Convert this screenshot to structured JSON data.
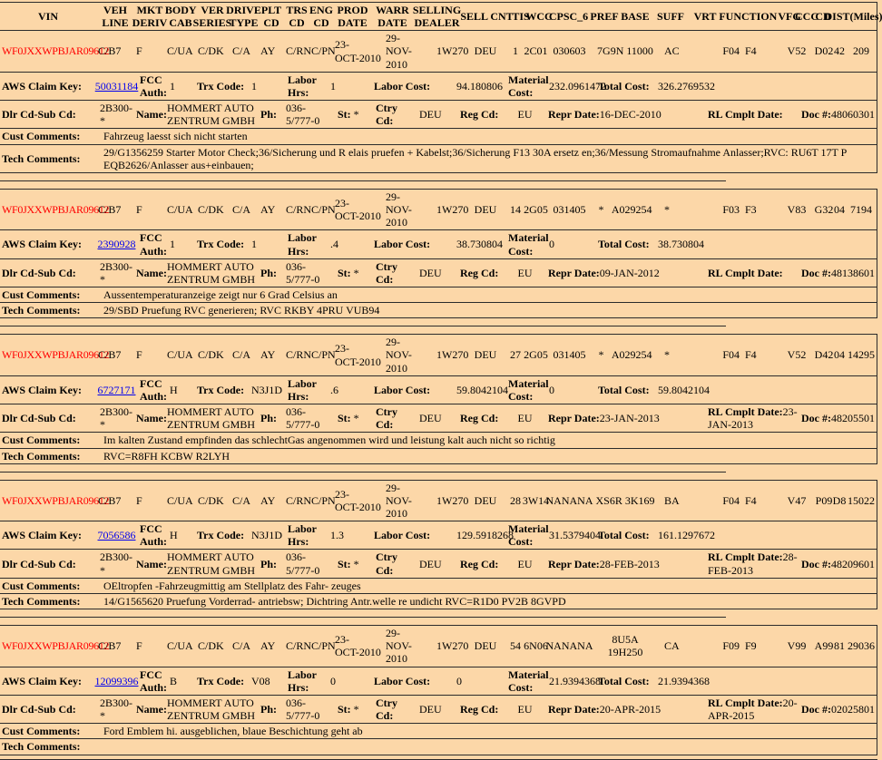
{
  "colors": {
    "background": "#fcd7a8",
    "vin_text": "#ff0000",
    "link": "#0000ee",
    "border": "#2b2b2b"
  },
  "headers": [
    "VIN",
    "VEH LINE",
    "MKT DERIV",
    "BODY CAB",
    "VER SERIES",
    "DRIVE TYPE",
    "PLT CD",
    "TRS CD",
    "ENG CD",
    "PROD DATE",
    "WARR DATE",
    "SELLING DEALER",
    "SELL CNT",
    "TIS",
    "WCC",
    "CPSC_6",
    "PREF BASE",
    "SUFF",
    "VRT FUNCTION",
    "VFG",
    "CCC",
    "CD",
    "DIST(Miles)"
  ],
  "labels": {
    "aws_claim_key": "AWS Claim Key:",
    "fcc_auth": "FCC Auth:",
    "trx_code": "Trx Code:",
    "labor_hrs": "Labor Hrs:",
    "labor_cost": "Labor Cost:",
    "material_cost": "Material Cost:",
    "total_cost": "Total Cost:",
    "dlr_cd_sub_cd": "Dlr Cd-Sub Cd:",
    "name": "Name:",
    "ph": "Ph:",
    "st": "St:",
    "ctry_cd": "Ctry Cd:",
    "reg_cd": "Reg Cd:",
    "repr_date": "Repr Date:",
    "rl_cmplt_date": "RL Cmplt Date:",
    "doc": "Doc #:",
    "cust_comments": "Cust Comments:",
    "tech_comments": "Tech Comments:"
  },
  "records": [
    {
      "vin": "WF0JXXWPBJAR09612",
      "veh_line": "C/B7",
      "mkt_deriv": "F",
      "body_cab": "C/UA",
      "ver_series": "C/DK",
      "drive_type": "C/A",
      "plt_cd": "AY",
      "trs_cd": "C/RN",
      "eng_cd": "C/PN",
      "prod_date": "23-\nOCT-2010",
      "warr_date": "29-\nNOV-2010",
      "selling_dealer": "1W270",
      "sell_cnt": "DEU",
      "tis": "1",
      "wcc": "2C01",
      "cpsc_6": "030603",
      "pref_base": "7G9N 11000",
      "suff": "AC",
      "vrt_function": "F04  F4",
      "vfg": "V52",
      "ccc": "D02",
      "cd": "42",
      "dist": "209",
      "claim_key": "50031184",
      "fcc_auth": "1",
      "trx_code": "1",
      "labor_hrs": "1",
      "labor_cost": "94.180806",
      "material_cost": "232.0961472",
      "total_cost": "326.2769532",
      "dlr_cd_sub_cd": "2B300-*",
      "dealer_name": "HOMMERT AUTO ZENTRUM GMBH",
      "phone": "036-5/777-0",
      "st": "*",
      "ctry_cd": "DEU",
      "reg_cd": "EU",
      "repr_date": "16-DEC-2010",
      "rl_cmplt_date": "",
      "doc_num": "48060301",
      "cust_comments": "Fahrzeug laesst sich nicht starten",
      "tech_comments": "29/G1356259 Starter Motor Check;36/Sicherung und R elais pruefen + Kabelst;36/Sicherung F13 30A ersetz en;36/Messung Stromaufnahme Anlasser;RVC: RU6T 17T P EQB2626/Anlasser aus+einbauen;"
    },
    {
      "vin": "WF0JXXWPBJAR09612",
      "veh_line": "C/B7",
      "mkt_deriv": "F",
      "body_cab": "C/UA",
      "ver_series": "C/DK",
      "drive_type": "C/A",
      "plt_cd": "AY",
      "trs_cd": "C/RN",
      "eng_cd": "C/PN",
      "prod_date": "23-\nOCT-2010",
      "warr_date": "29-\nNOV-2010",
      "selling_dealer": "1W270",
      "sell_cnt": "DEU",
      "tis": "14",
      "wcc": "2G05",
      "cpsc_6": "031405",
      "pref_base": "*   A029254",
      "suff": "*",
      "vrt_function": "F03  F3",
      "vfg": "V83",
      "ccc": "G32",
      "cd": "04",
      "dist": "7194",
      "claim_key": "2390928",
      "fcc_auth": "1",
      "trx_code": "1",
      "labor_hrs": ".4",
      "labor_cost": "38.730804",
      "material_cost": "0",
      "total_cost": "38.730804",
      "dlr_cd_sub_cd": "2B300-*",
      "dealer_name": "HOMMERT AUTO ZENTRUM GMBH",
      "phone": "036-5/777-0",
      "st": "*",
      "ctry_cd": "DEU",
      "reg_cd": "EU",
      "repr_date": "09-JAN-2012",
      "rl_cmplt_date": "",
      "doc_num": "48138601",
      "cust_comments": "Aussentemperaturanzeige zeigt nur 6 Grad Celsius an",
      "tech_comments": "29/SBD Pruefung RVC generieren; RVC RKBY 4PRU VUB94"
    },
    {
      "vin": "WF0JXXWPBJAR09612",
      "veh_line": "C/B7",
      "mkt_deriv": "F",
      "body_cab": "C/UA",
      "ver_series": "C/DK",
      "drive_type": "C/A",
      "plt_cd": "AY",
      "trs_cd": "C/RN",
      "eng_cd": "C/PN",
      "prod_date": "23-\nOCT-2010",
      "warr_date": "29-\nNOV-2010",
      "selling_dealer": "1W270",
      "sell_cnt": "DEU",
      "tis": "27",
      "wcc": "2G05",
      "cpsc_6": "031405",
      "pref_base": "*   A029254",
      "suff": "*",
      "vrt_function": "F04  F4",
      "vfg": "V52",
      "ccc": "D42",
      "cd": "04",
      "dist": "14295",
      "claim_key": "6727171",
      "fcc_auth": "H",
      "trx_code": "N3J1D",
      "labor_hrs": ".6",
      "labor_cost": "59.8042104",
      "material_cost": "0",
      "total_cost": "59.8042104",
      "dlr_cd_sub_cd": "2B300-*",
      "dealer_name": "HOMMERT AUTO ZENTRUM GMBH",
      "phone": "036-5/777-0",
      "st": "*",
      "ctry_cd": "DEU",
      "reg_cd": "EU",
      "repr_date": "23-JAN-2013",
      "rl_cmplt_date": "23-JAN-2013",
      "doc_num": "48205501",
      "cust_comments": "Im kalten Zustand empfinden das schlechtGas angenommen wird und leistung kalt auch nicht so richtig",
      "tech_comments": "RVC=R8FH KCBW R2LYH"
    },
    {
      "vin": "WF0JXXWPBJAR09612",
      "veh_line": "C/B7",
      "mkt_deriv": "F",
      "body_cab": "C/UA",
      "ver_series": "C/DK",
      "drive_type": "C/A",
      "plt_cd": "AY",
      "trs_cd": "C/RN",
      "eng_cd": "C/PN",
      "prod_date": "23-\nOCT-2010",
      "warr_date": "29-\nNOV-2010",
      "selling_dealer": "1W270",
      "sell_cnt": "DEU",
      "tis": "28",
      "wcc": "3W14",
      "cpsc_6": "NANANA",
      "pref_base": "XS6R 3K169",
      "suff": "BA",
      "vrt_function": "F04  F4",
      "vfg": "V47",
      "ccc": "P09",
      "cd": "D8",
      "dist": "15022",
      "claim_key": "7056586",
      "fcc_auth": "H",
      "trx_code": "N3J1D",
      "labor_hrs": "1.3",
      "labor_cost": "129.5918268",
      "material_cost": "31.5379404",
      "total_cost": "161.1297672",
      "dlr_cd_sub_cd": "2B300-*",
      "dealer_name": "HOMMERT AUTO ZENTRUM GMBH",
      "phone": "036-5/777-0",
      "st": "*",
      "ctry_cd": "DEU",
      "reg_cd": "EU",
      "repr_date": "28-FEB-2013",
      "rl_cmplt_date": "28-FEB-2013",
      "doc_num": "48209601",
      "cust_comments": "OEltropfen -Fahrzeugmittig am Stellplatz des Fahr- zeuges",
      "tech_comments": "14/G1565620 Pruefung Vorderrad- antriebsw; Dichtring Antr.welle re undicht RVC=R1D0 PV2B 8GVPD"
    },
    {
      "vin": "WF0JXXWPBJAR09612",
      "veh_line": "C/B7",
      "mkt_deriv": "F",
      "body_cab": "C/UA",
      "ver_series": "C/DK",
      "drive_type": "C/A",
      "plt_cd": "AY",
      "trs_cd": "C/RN",
      "eng_cd": "C/PN",
      "prod_date": "23-\nOCT-2010",
      "warr_date": "29-\nNOV-2010",
      "selling_dealer": "1W270",
      "sell_cnt": "DEU",
      "tis": "54",
      "wcc": "6N06",
      "cpsc_6": "NANANA",
      "pref_base": "8U5A 19H250",
      "suff": "CA",
      "vrt_function": "F09  F9",
      "vfg": "V99",
      "ccc": "A99",
      "cd": "81",
      "dist": "29036",
      "claim_key": "12099396",
      "fcc_auth": "B",
      "trx_code": "V08",
      "labor_hrs": "0",
      "labor_cost": "0",
      "material_cost": "21.9394368",
      "total_cost": "21.9394368",
      "dlr_cd_sub_cd": "2B300-*",
      "dealer_name": "HOMMERT AUTO ZENTRUM GMBH",
      "phone": "036-5/777-0",
      "st": "*",
      "ctry_cd": "DEU",
      "reg_cd": "EU",
      "repr_date": "20-APR-2015",
      "rl_cmplt_date": "20-APR-2015",
      "doc_num": "02025801",
      "cust_comments": "Ford Emblem hi. ausgeblichen, blaue Beschichtung geht ab",
      "tech_comments": ""
    }
  ]
}
